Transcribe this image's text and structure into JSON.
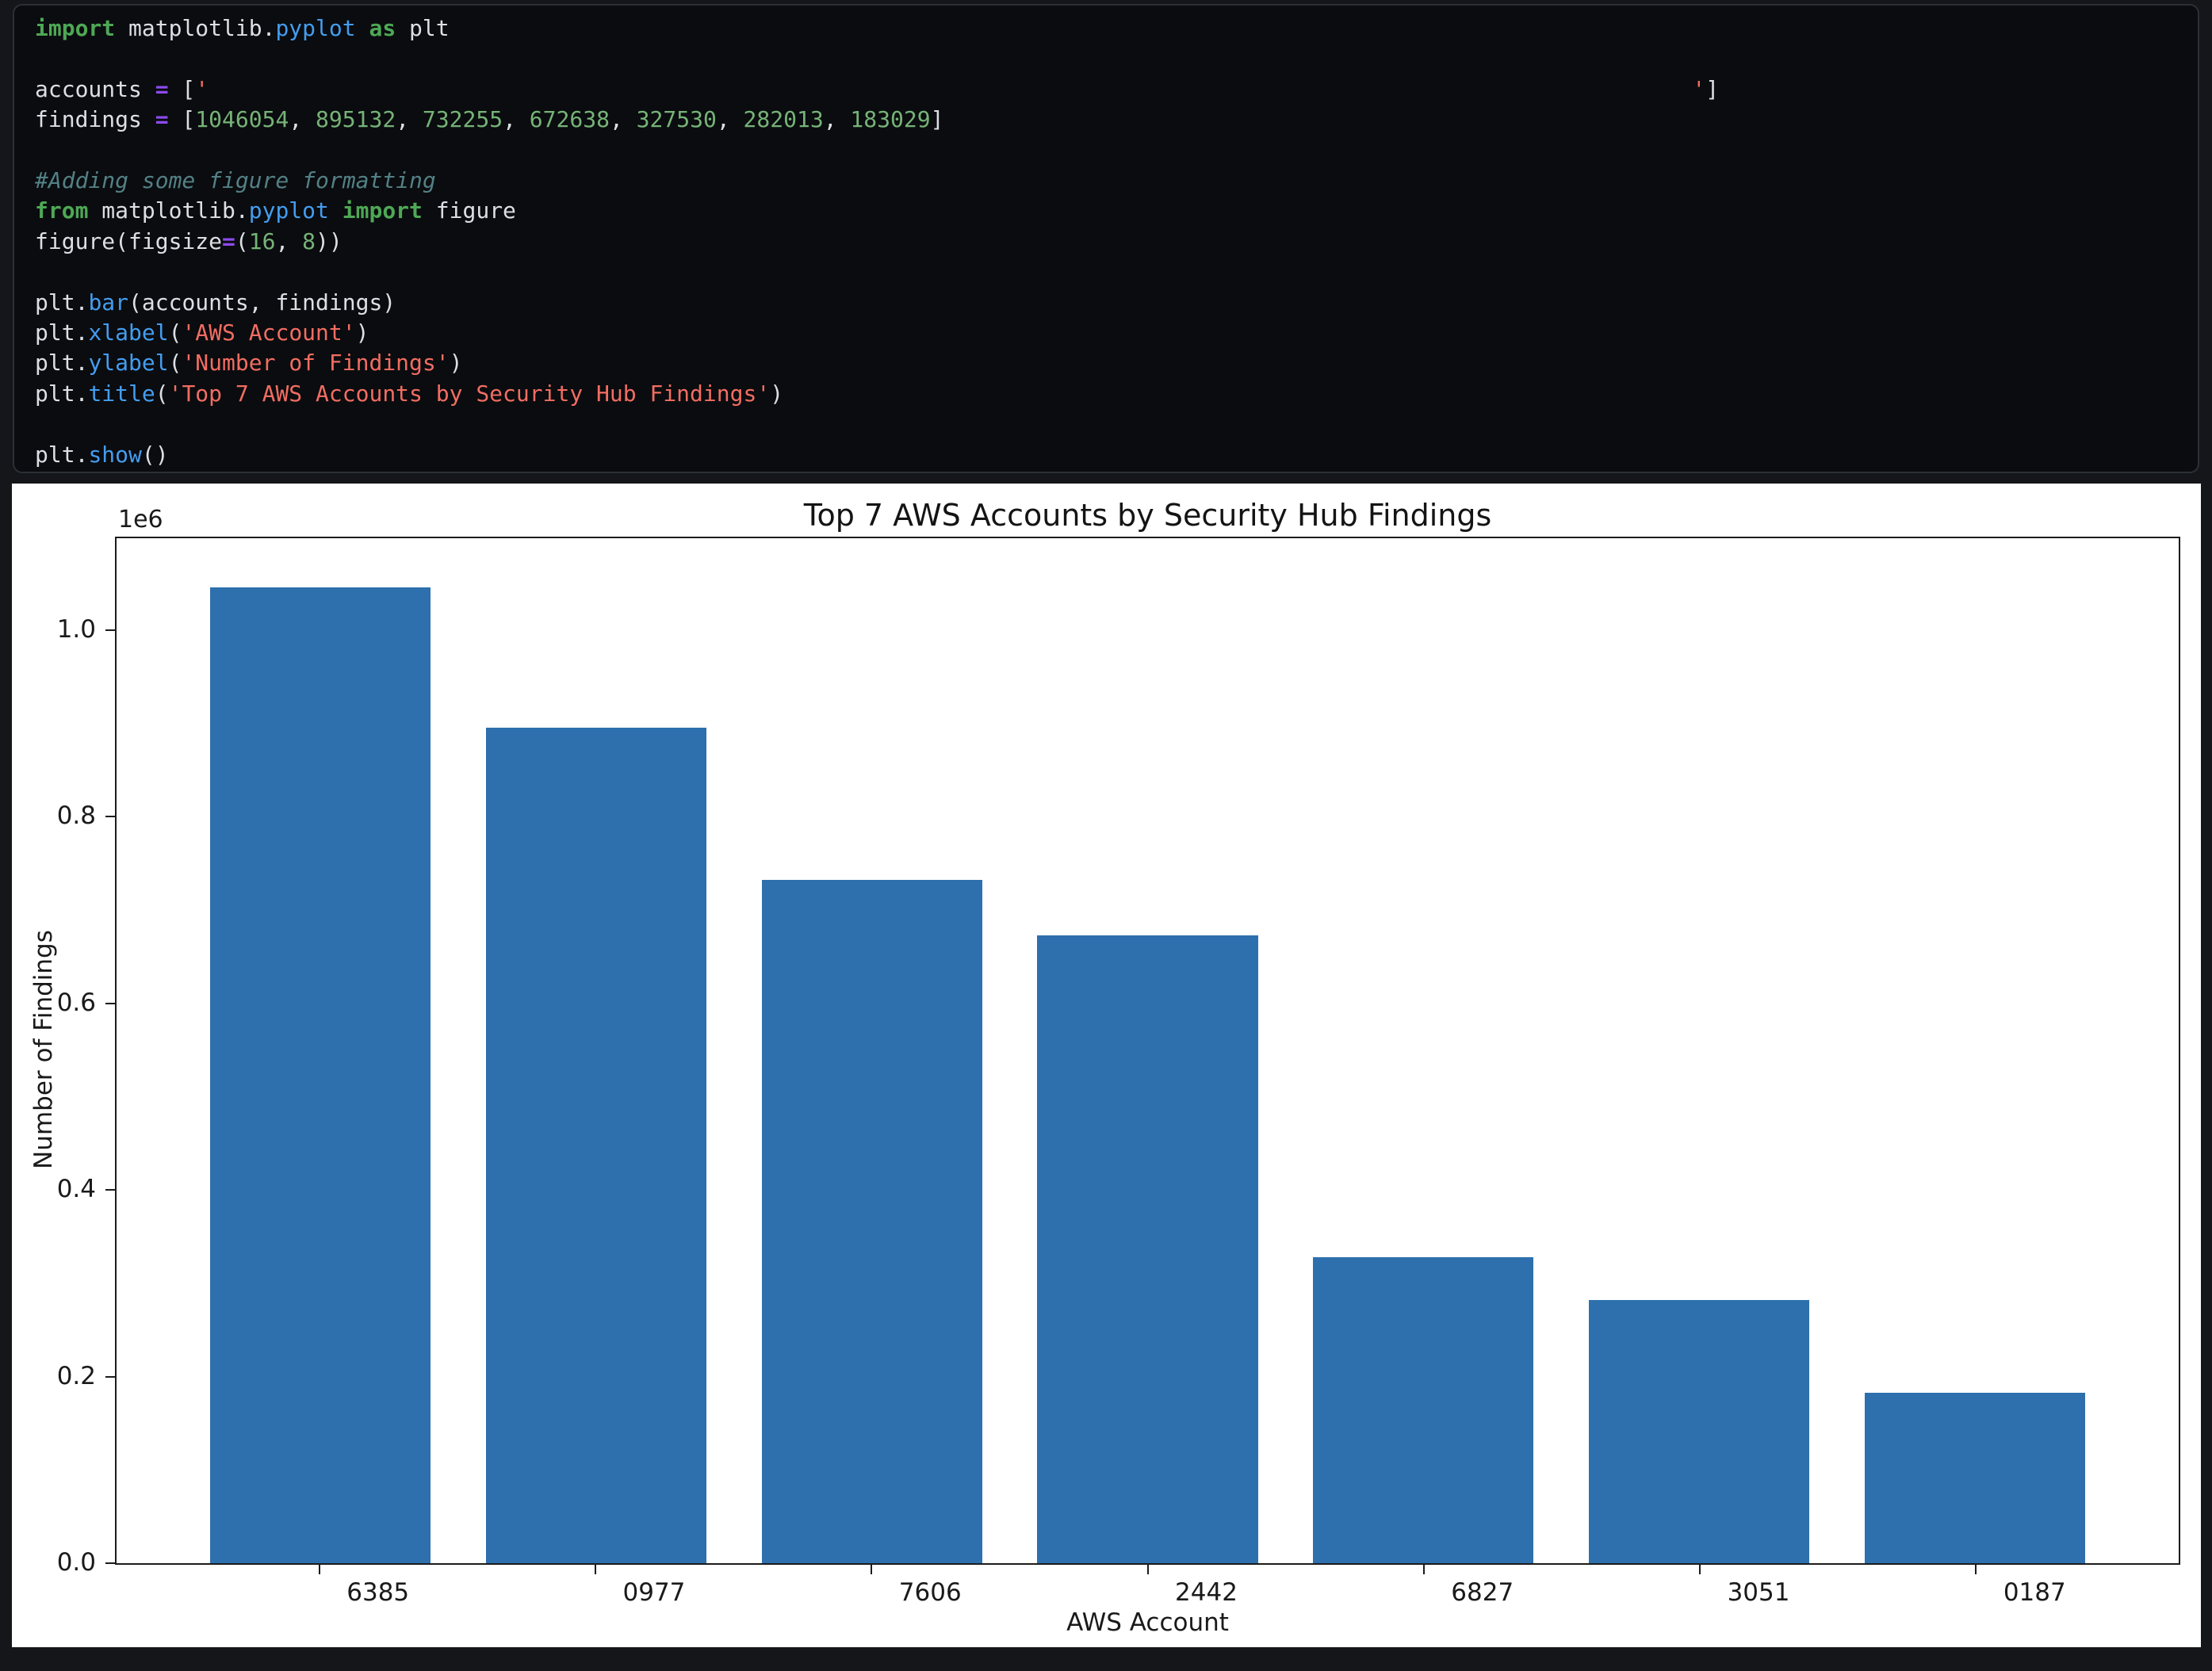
{
  "code": {
    "lines": [
      [
        {
          "c": "kw",
          "t": "import"
        },
        {
          "c": "pl",
          "t": " matplotlib."
        },
        {
          "c": "fn",
          "t": "pyplot"
        },
        {
          "c": "kw",
          "t": " as"
        },
        {
          "c": "pl",
          "t": " plt"
        }
      ],
      [],
      [
        {
          "c": "pl",
          "t": "accounts "
        },
        {
          "c": "op",
          "t": "="
        },
        {
          "c": "pl",
          "t": " ["
        },
        {
          "c": "str",
          "t": "'"
        },
        {
          "c": "gap",
          "t": "",
          "w": 111
        },
        {
          "c": "str",
          "t": "'"
        },
        {
          "c": "pl",
          "t": "]"
        }
      ],
      [
        {
          "c": "pl",
          "t": "findings "
        },
        {
          "c": "op",
          "t": "="
        },
        {
          "c": "pl",
          "t": " ["
        },
        {
          "c": "num",
          "t": "1046054"
        },
        {
          "c": "pl",
          "t": ", "
        },
        {
          "c": "num",
          "t": "895132"
        },
        {
          "c": "pl",
          "t": ", "
        },
        {
          "c": "num",
          "t": "732255"
        },
        {
          "c": "pl",
          "t": ", "
        },
        {
          "c": "num",
          "t": "672638"
        },
        {
          "c": "pl",
          "t": ", "
        },
        {
          "c": "num",
          "t": "327530"
        },
        {
          "c": "pl",
          "t": ", "
        },
        {
          "c": "num",
          "t": "282013"
        },
        {
          "c": "pl",
          "t": ", "
        },
        {
          "c": "num",
          "t": "183029"
        },
        {
          "c": "pl",
          "t": "]"
        }
      ],
      [],
      [
        {
          "c": "com",
          "t": "#Adding some figure formatting"
        }
      ],
      [
        {
          "c": "kw",
          "t": "from"
        },
        {
          "c": "pl",
          "t": " matplotlib."
        },
        {
          "c": "fn",
          "t": "pyplot"
        },
        {
          "c": "kw",
          "t": " import"
        },
        {
          "c": "pl",
          "t": " figure"
        }
      ],
      [
        {
          "c": "pl",
          "t": "figure(figsize"
        },
        {
          "c": "op",
          "t": "="
        },
        {
          "c": "pl",
          "t": "("
        },
        {
          "c": "num",
          "t": "16"
        },
        {
          "c": "pl",
          "t": ", "
        },
        {
          "c": "num",
          "t": "8"
        },
        {
          "c": "pl",
          "t": "))"
        }
      ],
      [],
      [
        {
          "c": "pl",
          "t": "plt."
        },
        {
          "c": "fn",
          "t": "bar"
        },
        {
          "c": "pl",
          "t": "(accounts, findings)"
        }
      ],
      [
        {
          "c": "pl",
          "t": "plt."
        },
        {
          "c": "fn",
          "t": "xlabel"
        },
        {
          "c": "pl",
          "t": "("
        },
        {
          "c": "str",
          "t": "'AWS Account'"
        },
        {
          "c": "pl",
          "t": ")"
        }
      ],
      [
        {
          "c": "pl",
          "t": "plt."
        },
        {
          "c": "fn",
          "t": "ylabel"
        },
        {
          "c": "pl",
          "t": "("
        },
        {
          "c": "str",
          "t": "'Number of Findings'"
        },
        {
          "c": "pl",
          "t": ")"
        }
      ],
      [
        {
          "c": "pl",
          "t": "plt."
        },
        {
          "c": "fn",
          "t": "title"
        },
        {
          "c": "pl",
          "t": "("
        },
        {
          "c": "str",
          "t": "'Top 7 AWS Accounts by Security Hub Findings'"
        },
        {
          "c": "pl",
          "t": ")"
        }
      ],
      [],
      [
        {
          "c": "pl",
          "t": "plt."
        },
        {
          "c": "fn",
          "t": "show"
        },
        {
          "c": "pl",
          "t": "()"
        }
      ]
    ]
  },
  "chart_data": {
    "type": "bar",
    "title": "Top 7 AWS Accounts by Security Hub Findings",
    "xlabel": "AWS Account",
    "ylabel": "Number of Findings",
    "y_offset_label": "1e6",
    "categories": [
      "6385",
      "0977",
      "7606",
      "2442",
      "6827",
      "3051",
      "0187"
    ],
    "values": [
      1046054,
      895132,
      732255,
      672638,
      327530,
      282013,
      183029
    ],
    "ylim": [
      0,
      1098357
    ],
    "yticks": [
      0.0,
      0.2,
      0.4,
      0.6,
      0.8,
      1.0
    ],
    "ytick_scale": 1000000,
    "bar_color": "#2d70ad",
    "grid": false,
    "legend": null
  }
}
